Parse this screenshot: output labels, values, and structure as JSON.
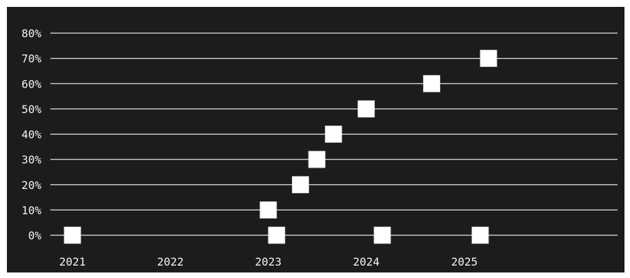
{
  "chart_data": {
    "type": "scatter",
    "title": "",
    "xlabel": "",
    "ylabel": "",
    "x_axis": {
      "type": "date",
      "range": [
        "2020-11-01",
        "2026-03-01"
      ],
      "ticks": [
        {
          "value": "2021-01-01",
          "label": "2021"
        },
        {
          "value": "2022-01-01",
          "label": "2022"
        },
        {
          "value": "2023-01-01",
          "label": "2023"
        },
        {
          "value": "2024-01-01",
          "label": "2024"
        },
        {
          "value": "2025-01-01",
          "label": "2025"
        }
      ]
    },
    "y_axis": {
      "range": [
        0,
        80
      ],
      "unit": "%",
      "ticks": [
        {
          "value": 0,
          "label": "0%"
        },
        {
          "value": 10,
          "label": "10%"
        },
        {
          "value": 20,
          "label": "20%"
        },
        {
          "value": 30,
          "label": "30%"
        },
        {
          "value": 40,
          "label": "40%"
        },
        {
          "value": 50,
          "label": "50%"
        },
        {
          "value": 60,
          "label": "60%"
        },
        {
          "value": 70,
          "label": "70%"
        },
        {
          "value": 80,
          "label": "80%"
        }
      ]
    },
    "grid": {
      "horizontal": true,
      "vertical": false
    },
    "legend": "none",
    "marker": "square",
    "colors": {
      "background": "#1c1c1c",
      "marker": "#ffffff",
      "grid": "#e8e8e8",
      "text": "#f2f2f2"
    },
    "points": [
      {
        "x": "2021-01-01",
        "y": 0
      },
      {
        "x": "2023-01-01",
        "y": 10
      },
      {
        "x": "2023-02-01",
        "y": 0
      },
      {
        "x": "2023-05-01",
        "y": 20
      },
      {
        "x": "2023-07-01",
        "y": 30
      },
      {
        "x": "2023-09-01",
        "y": 40
      },
      {
        "x": "2024-01-01",
        "y": 50
      },
      {
        "x": "2024-03-01",
        "y": 0
      },
      {
        "x": "2024-09-01",
        "y": 60
      },
      {
        "x": "2025-03-01",
        "y": 0
      },
      {
        "x": "2025-04-01",
        "y": 70
      }
    ]
  }
}
